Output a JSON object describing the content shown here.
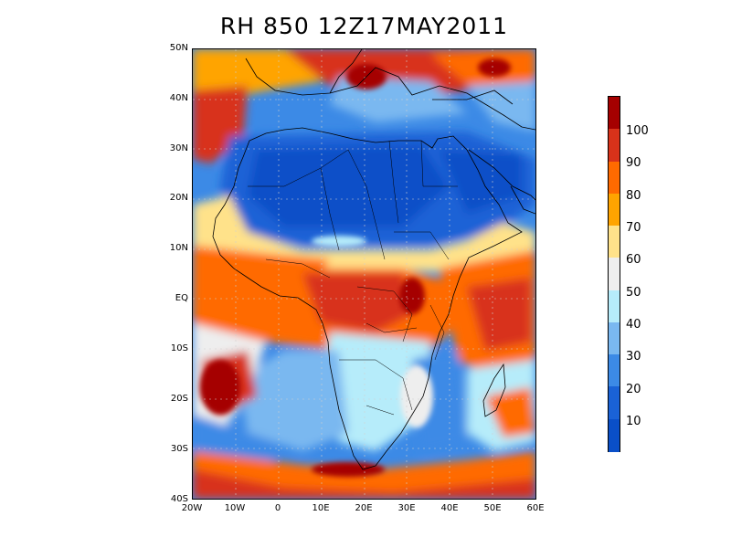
{
  "title": "RH 850  12Z17MAY2011",
  "map": {
    "y_tick_labels": [
      "50N",
      "40N",
      "30N",
      "20N",
      "10N",
      "EQ",
      "10S",
      "20S",
      "30S",
      "40S"
    ],
    "x_tick_labels": [
      "20W",
      "10W",
      "0",
      "10E",
      "20E",
      "30E",
      "40E",
      "50E",
      "60E"
    ],
    "lon_range": [
      -20,
      60
    ],
    "lat_range": [
      -40,
      50
    ]
  },
  "colorbar": {
    "labels": [
      "100",
      "90",
      "80",
      "70",
      "60",
      "50",
      "40",
      "30",
      "20",
      "10"
    ],
    "colors": [
      "#a50000",
      "#d8321a",
      "#ff6a00",
      "#ffa400",
      "#ffe28a",
      "#eeeeee",
      "#b6ecfa",
      "#7ab8f0",
      "#3c8ae6",
      "#1a62d6",
      "#0a4fc8"
    ]
  }
}
